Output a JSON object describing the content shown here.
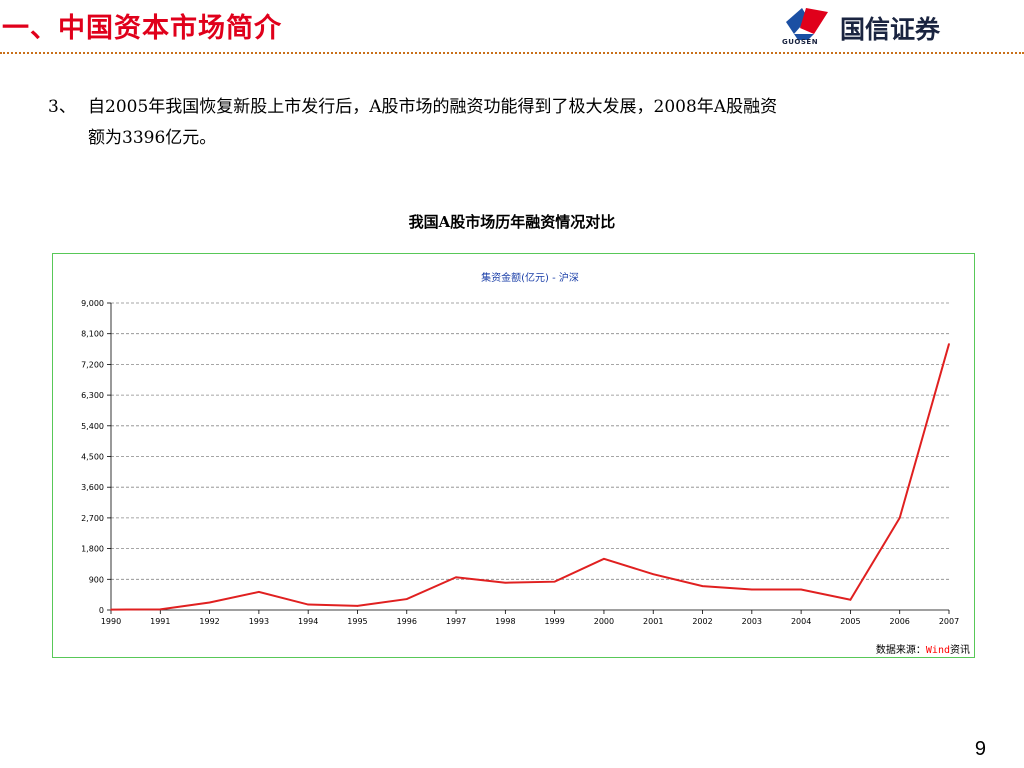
{
  "header": {
    "title": "一、中国资本市场简介",
    "logo_text": "国信证券",
    "logo_sub": "GUOSEN"
  },
  "body": {
    "item_number": "3、",
    "line1": "自2005年我国恢复新股上市发行后，A股市场的融资功能得到了极大发展，2008年A股融资",
    "line2": "额为3396亿元。"
  },
  "chart_caption": "我国A股市场历年融资情况对比",
  "colors": {
    "title": "#e0001b",
    "line": "#e02020",
    "frame": "#58c858",
    "grid": "#888888"
  },
  "chart_data": {
    "type": "line",
    "title": "集资金额(亿元) - 沪深",
    "xlabel": "",
    "ylabel": "",
    "categories": [
      "1990",
      "1991",
      "1992",
      "1993",
      "1994",
      "1995",
      "1996",
      "1997",
      "1998",
      "1999",
      "2000",
      "2001",
      "2002",
      "2003",
      "2004",
      "2005",
      "2006",
      "2007"
    ],
    "series": [
      {
        "name": "",
        "values": [
          10,
          20,
          220,
          530,
          160,
          120,
          320,
          960,
          800,
          830,
          1500,
          1050,
          700,
          600,
          600,
          300,
          2700,
          7800
        ]
      }
    ],
    "yticks": [
      "0",
      "900",
      "1,800",
      "2,700",
      "3,600",
      "4,500",
      "5,400",
      "6,300",
      "7,200",
      "8,100",
      "9,000"
    ],
    "ylim": [
      0,
      9000
    ],
    "grid": true,
    "legend": "none"
  },
  "source": {
    "prefix": "数据来源：",
    "brand": "Wind",
    "suffix": "资讯"
  },
  "page_number": "9"
}
